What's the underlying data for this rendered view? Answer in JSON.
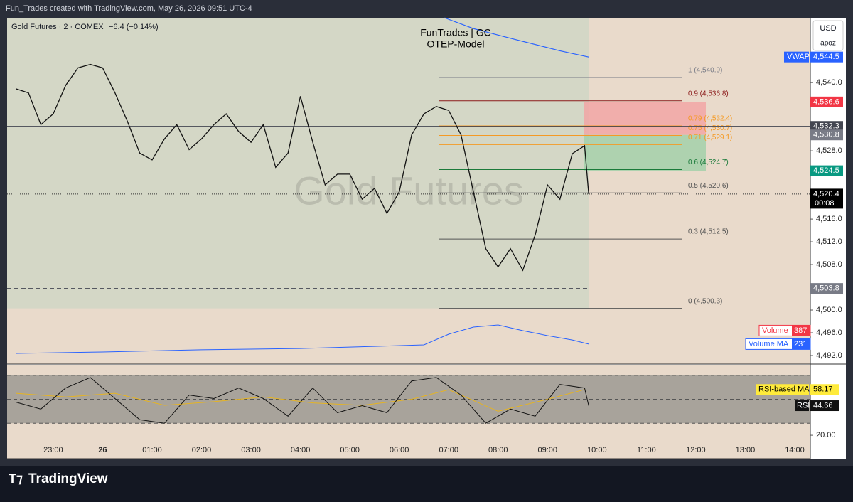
{
  "header": "Fun_Trades created with TradingView.com, May 26, 2026 09:51 UTC-4",
  "brand": "TradingView",
  "chart_data": {
    "type": "line",
    "title": "FunTrades | GC",
    "subtitle": "OTEP-Model",
    "symbol": "Gold Futures · 2 · COMEX",
    "change": "−6.4 (−0.14%)",
    "watermark": "Gold Futures",
    "currency": "USD",
    "unit": "apoz",
    "x": [
      "22:15",
      "22:30",
      "22:45",
      "23:00",
      "23:15",
      "23:30",
      "23:45",
      "00:00",
      "00:15",
      "00:30",
      "00:45",
      "01:00",
      "01:15",
      "01:30",
      "01:45",
      "02:00",
      "02:15",
      "02:30",
      "02:45",
      "03:00",
      "03:15",
      "03:30",
      "03:45",
      "04:00",
      "04:15",
      "04:30",
      "04:45",
      "05:00",
      "05:15",
      "05:30",
      "05:45",
      "06:00",
      "06:15",
      "06:30",
      "06:45",
      "07:00",
      "07:15",
      "07:30",
      "07:45",
      "08:00",
      "08:15",
      "08:30",
      "08:45",
      "09:00",
      "09:15",
      "09:30",
      "09:45",
      "09:50"
    ],
    "series": [
      {
        "name": "Gold Futures",
        "color": "#111111",
        "values": [
          4538.9,
          4538.2,
          4532.6,
          4534.5,
          4539.5,
          4542.6,
          4543.2,
          4542.6,
          4538.2,
          4533.2,
          4527.6,
          4526.4,
          4530.1,
          4532.6,
          4528.2,
          4530.1,
          4532.6,
          4534.5,
          4531.4,
          4529.5,
          4532.6,
          4525.1,
          4527.6,
          4537.6,
          4529.5,
          4522.0,
          4523.9,
          4523.9,
          4519.5,
          4521.4,
          4517.0,
          4520.8,
          4530.8,
          4534.5,
          4535.8,
          4535.1,
          4530.8,
          4520.8,
          4510.8,
          4507.6,
          4510.8,
          4507.0,
          4513.2,
          4522.0,
          4519.5,
          4527.5,
          4528.9,
          4520.4
        ]
      }
    ],
    "vwap": {
      "name": "VWAP",
      "color": "#2962ff",
      "x": [
        "06:55",
        "07:30",
        "08:15",
        "09:15",
        "09:50"
      ],
      "values": [
        4551.4,
        4549.5,
        4547.8,
        4545.6,
        4544.5
      ]
    },
    "xlim": [
      "22:04",
      "14:19"
    ],
    "xticks": [
      "23:00",
      {
        "value": "00:00",
        "label": "26"
      },
      "01:00",
      "02:00",
      "03:00",
      "04:00",
      "05:00",
      "06:00",
      "07:00",
      "08:00",
      "09:00",
      "10:00",
      "11:00",
      "12:00",
      "13:00",
      "14:00"
    ],
    "ylim": [
      4490.5,
      4551.4
    ],
    "yticks": [
      {
        "value": 4492,
        "label": "4,492.0"
      },
      {
        "value": 4496,
        "label": "4,496.0"
      },
      {
        "value": 4500,
        "label": "4,500.0"
      },
      {
        "value": 4508,
        "label": "4,508.0"
      },
      {
        "value": 4512,
        "label": "4,512.0"
      },
      {
        "value": 4516,
        "label": "4,516.0"
      },
      {
        "value": 4528,
        "label": "4,528.0"
      },
      {
        "value": 4540,
        "label": "4,540.0"
      }
    ],
    "price_labels": [
      {
        "value": 4544.5,
        "label": "4,544.5",
        "color": "#2962ff"
      },
      {
        "value": 4536.6,
        "label": "4,536.6",
        "color": "#f23645"
      },
      {
        "value": 4532.3,
        "label": "4,532.3",
        "color": "#434651"
      },
      {
        "value": 4530.8,
        "label": "4,530.8",
        "color": "#787b86"
      },
      {
        "value": 4524.5,
        "label": "4,524.5",
        "color": "#089981"
      },
      {
        "value": 4520.4,
        "label": "4,520.4",
        "color": "#000000",
        "countdown": "00:08"
      },
      {
        "value": 4503.8,
        "label": "4,503.8",
        "color": "#787b86"
      }
    ],
    "levels": {
      "hline": 4532.3,
      "dashed": 4503.8,
      "last": 4520.4
    },
    "boxes": [
      {
        "top": 4536.6,
        "bottom": 4530.8,
        "color": "#f2a3a3"
      },
      {
        "top": 4530.8,
        "bottom": 4524.5,
        "color": "#9fcfa8"
      }
    ],
    "fib": [
      {
        "value": 4540.9,
        "label": "1 (4,540.9)",
        "color": "#787b86"
      },
      {
        "value": 4536.8,
        "label": "0.9 (4,536.8)",
        "color": "#8b1a1a"
      },
      {
        "value": 4532.4,
        "label": "0.79 (4,532.4)",
        "color": "#f59a23"
      },
      {
        "value": 4530.7,
        "label": "0.75 (4,530.7)",
        "color": "#f59a23"
      },
      {
        "value": 4529.1,
        "label": "0.71 (4,529.1)",
        "color": "#f59a23"
      },
      {
        "value": 4524.7,
        "label": "0.6 (4,524.7)",
        "color": "#1b7a3a"
      },
      {
        "value": 4520.6,
        "label": "0.5 (4,520.6)",
        "color": "#555555"
      },
      {
        "value": 4512.5,
        "label": "0.3 (4,512.5)",
        "color": "#555555"
      },
      {
        "value": 4500.3,
        "label": "0 (4,500.3)",
        "color": "#555555"
      }
    ],
    "volume": {
      "name": "Volume",
      "value": 387,
      "color": "#f23645",
      "ylim": [
        0,
        600
      ],
      "ma": {
        "name": "Volume MA",
        "value": 231,
        "color": "#2962ff",
        "x": [
          "22:15",
          "00:00",
          "02:00",
          "04:00",
          "05:30",
          "06:30",
          "07:00",
          "07:30",
          "08:00",
          "08:30",
          "09:00",
          "09:30",
          "09:50"
        ],
        "values": [
          123,
          140,
          165,
          180,
          205,
          222,
          345,
          427,
          452,
          386,
          329,
          279,
          231
        ]
      }
    },
    "rsi": {
      "name": "RSI",
      "color": "#111111",
      "value": 44.66,
      "ylim": [
        15.3,
        78.8
      ],
      "yticks": [
        {
          "value": 20,
          "label": "20.00"
        }
      ],
      "bands": [
        70,
        50,
        30
      ],
      "x": [
        "22:15",
        "22:45",
        "23:15",
        "23:45",
        "00:15",
        "00:45",
        "01:15",
        "01:45",
        "02:15",
        "02:45",
        "03:15",
        "03:45",
        "04:15",
        "04:45",
        "05:15",
        "05:45",
        "06:15",
        "06:45",
        "07:15",
        "07:45",
        "08:15",
        "08:45",
        "09:15",
        "09:45",
        "09:50"
      ],
      "values": [
        47.6,
        41.8,
        59.4,
        68.2,
        50.6,
        32.9,
        30,
        53.5,
        50.6,
        59.4,
        50.6,
        35.9,
        59.4,
        38.8,
        44.7,
        38.8,
        65.3,
        68.2,
        53.5,
        30,
        41.8,
        35.9,
        62.4,
        59.4,
        44.66
      ],
      "ma": {
        "name": "RSI-based MA",
        "color": "#e6b422",
        "value": 58.17,
        "x": [
          "22:15",
          "23:15",
          "00:15",
          "01:15",
          "02:15",
          "03:15",
          "04:15",
          "05:15",
          "06:15",
          "07:00",
          "08:00",
          "09:00",
          "09:45"
        ],
        "values": [
          55,
          52,
          55,
          45,
          48,
          52,
          47,
          45,
          50,
          58,
          40,
          50,
          58.17
        ]
      }
    }
  }
}
